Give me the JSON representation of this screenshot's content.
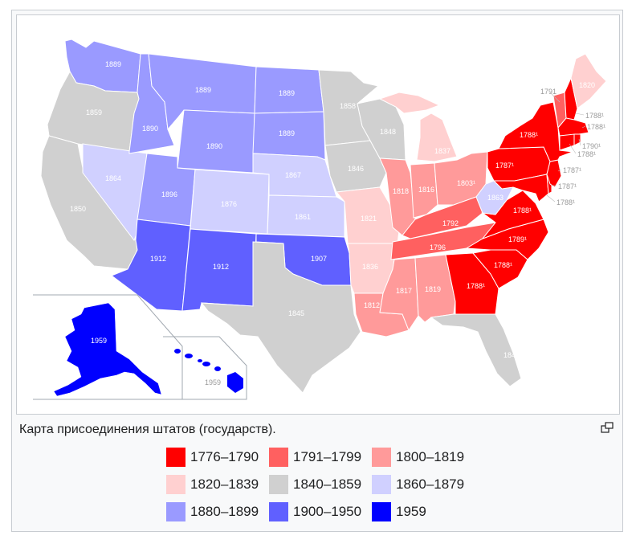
{
  "colors": {
    "c1776": "#ff0000",
    "c1791": "#ff6060",
    "c1800": "#ff9a9a",
    "c1820": "#ffd0d0",
    "c1840": "#d0d0d0",
    "c1860": "#d0d0ff",
    "c1880": "#9a9aff",
    "c1900": "#6060ff",
    "c1959": "#0000ff"
  },
  "caption": "Карта присоединения штатов (государств).",
  "legend": [
    {
      "label": "1776–1790",
      "color": "#ff0000"
    },
    {
      "label": "1791–1799",
      "color": "#ff6060"
    },
    {
      "label": "1800–1819",
      "color": "#ff9a9a"
    },
    {
      "label": "1820–1839",
      "color": "#ffd0d0"
    },
    {
      "label": "1840–1859",
      "color": "#d0d0d0"
    },
    {
      "label": "1860–1879",
      "color": "#d0d0ff"
    },
    {
      "label": "1880–1899",
      "color": "#9a9aff"
    },
    {
      "label": "1900–1950",
      "color": "#6060ff"
    },
    {
      "label": "1959",
      "color": "#0000ff"
    }
  ],
  "map_labels": {
    "wa": "1889",
    "or": "1859",
    "ca": "1850",
    "id": "1890",
    "nv": "1864",
    "mt": "1889",
    "wy": "1890",
    "ut": "1896",
    "az": "1912",
    "co": "1876",
    "nm": "1912",
    "nd": "1889",
    "sd": "1889",
    "ne": "1867",
    "ks": "1861",
    "ok": "1907",
    "tx": "1845",
    "mn": "1858",
    "ia": "1846",
    "mo": "1821",
    "ar": "1836",
    "la": "1812",
    "wi": "1848",
    "il": "1818",
    "ms": "1817",
    "mi": "1837",
    "in": "1816",
    "al": "1819",
    "oh": "1803¹",
    "ky": "1792",
    "tn": "1796",
    "ga": "1788¹",
    "fl": "1845",
    "sc": "1788¹",
    "nc": "1789¹",
    "va": "1788¹",
    "wv": "1863",
    "pa": "1787¹",
    "ny": "1788¹",
    "vt": "1791",
    "me": "1820",
    "nh": "1788¹",
    "ma": "1788¹",
    "ri": "1790¹",
    "ct": "1788¹",
    "nj": "1787¹",
    "de": "1787¹",
    "md": "1788¹",
    "ak": "1959",
    "hi": "1959"
  }
}
